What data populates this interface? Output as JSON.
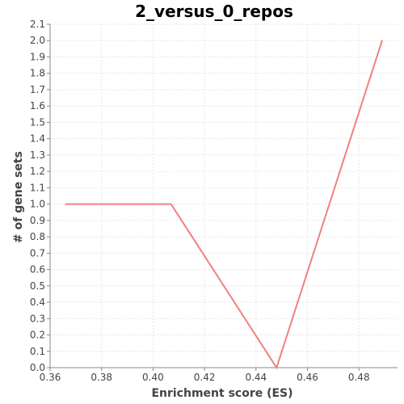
{
  "chart_data": {
    "type": "line",
    "title": "2_versus_0_repos",
    "xlabel": "Enrichment score (ES)",
    "ylabel": "# of gene sets",
    "xlim": [
      0.36,
      0.495
    ],
    "ylim": [
      0.0,
      2.1
    ],
    "x_ticks": [
      "0.36",
      "0.38",
      "0.40",
      "0.42",
      "0.44",
      "0.46",
      "0.48"
    ],
    "y_ticks": [
      "0.0",
      "0.1",
      "0.2",
      "0.3",
      "0.4",
      "0.5",
      "0.6",
      "0.7",
      "0.8",
      "0.9",
      "1.0",
      "1.1",
      "1.2",
      "1.3",
      "1.4",
      "1.5",
      "1.6",
      "1.7",
      "1.8",
      "1.9",
      "2.0",
      "2.1"
    ],
    "grid": true,
    "series": [
      {
        "color": "#f08080",
        "x": [
          0.366,
          0.407,
          0.448,
          0.489
        ],
        "y": [
          1.0,
          1.0,
          0.0,
          2.0
        ]
      }
    ]
  }
}
